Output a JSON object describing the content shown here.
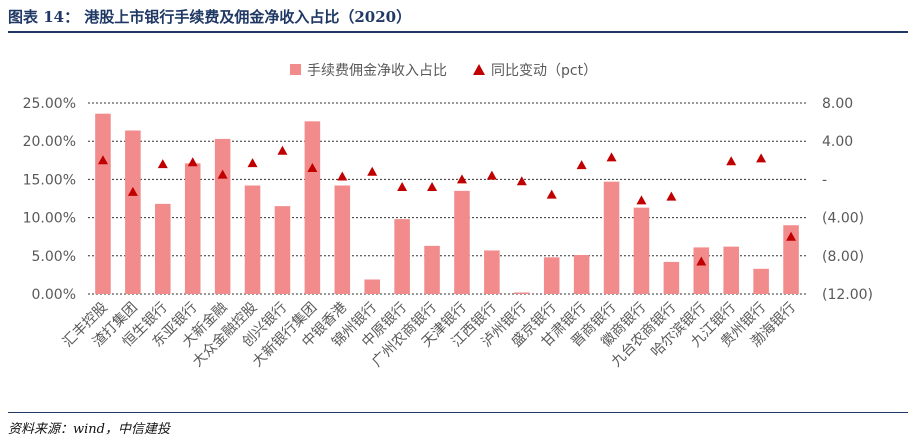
{
  "header": {
    "title": "图表 14： 港股上市银行手续费及佣金净收入占比（2020）"
  },
  "footer": {
    "source": "资料来源：wind，中信建投"
  },
  "colors": {
    "bar": "#f28b8b",
    "marker": "#c00000",
    "grid": "#333333",
    "text": "#595959",
    "title": "#1f3864"
  },
  "chart_data": {
    "type": "bar",
    "categories": [
      "汇丰控股",
      "渣打集团",
      "恒生银行",
      "东亚银行",
      "大新金融",
      "大众金融控股",
      "创兴银行",
      "大新银行集团",
      "中银香港",
      "锦州银行",
      "中原银行",
      "广州农商银行",
      "天津银行",
      "江西银行",
      "泸州银行",
      "盛京银行",
      "甘肃银行",
      "晋商银行",
      "徽商银行",
      "九台农商银行",
      "哈尔滨银行",
      "九江银行",
      "贵州银行",
      "渤海银行"
    ],
    "series": [
      {
        "name": "手续费佣金净收入占比",
        "type": "bar",
        "axis": "left",
        "values": [
          23.6,
          21.4,
          11.8,
          17.1,
          20.3,
          14.2,
          11.5,
          22.6,
          14.2,
          1.9,
          9.8,
          6.3,
          13.5,
          5.7,
          0.2,
          4.8,
          5.1,
          14.7,
          11.3,
          4.2,
          6.1,
          6.2,
          3.3,
          9.0
        ]
      },
      {
        "name": "同比变动（pct）",
        "type": "scatter",
        "axis": "right",
        "values": [
          2.0,
          -1.3,
          1.6,
          1.8,
          0.5,
          1.7,
          3.0,
          1.2,
          0.3,
          0.8,
          -0.8,
          -0.8,
          0.0,
          0.4,
          -0.2,
          -1.6,
          1.5,
          2.3,
          -2.2,
          -1.8,
          -8.6,
          1.9,
          2.2,
          -6.0
        ]
      }
    ],
    "y_left": {
      "ticks": [
        "25.00%",
        "20.00%",
        "15.00%",
        "10.00%",
        "5.00%",
        "0.00%"
      ],
      "ylim": [
        0,
        25
      ]
    },
    "y_right": {
      "ticks": [
        "8.00",
        "4.00",
        "-",
        "(4.00)",
        "(8.00)",
        "(12.00)"
      ],
      "ylim": [
        -12,
        8
      ]
    },
    "grid": true,
    "legend_position": "top-center"
  }
}
